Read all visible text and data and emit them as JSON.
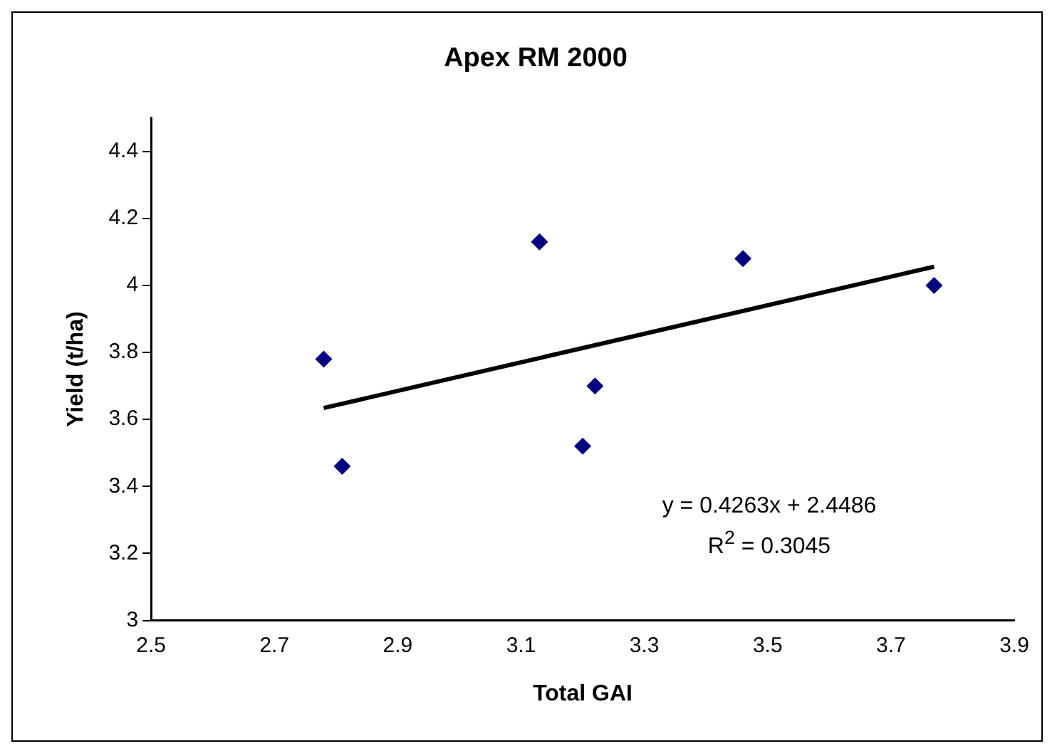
{
  "chart_data": {
    "type": "scatter",
    "title": "Apex RM 2000",
    "xlabel": "Total GAI",
    "ylabel": "Yield (t/ha)",
    "series": [
      {
        "type": "scatter",
        "color": "#000080",
        "marker": "diamond",
        "x": [
          2.78,
          2.81,
          3.13,
          3.2,
          3.22,
          3.46,
          3.77
        ],
        "values": [
          3.78,
          3.46,
          4.13,
          3.52,
          3.7,
          4.08,
          4.0
        ]
      },
      {
        "type": "line",
        "color": "#000000",
        "marker": "none",
        "x": [
          2.78,
          3.77
        ],
        "values": [
          3.634,
          4.056
        ]
      }
    ],
    "xlim": [
      2.5,
      3.9
    ],
    "xticks": [
      2.5,
      2.7,
      2.9,
      3.1,
      3.3,
      3.5,
      3.7,
      3.9
    ],
    "ylim": [
      3,
      4.5
    ],
    "yticks": [
      3,
      3.2,
      3.4,
      3.6,
      3.8,
      4,
      4.2,
      4.4
    ],
    "annotations": [
      "y = 0.4263x + 2.4486",
      "R$^{2}$ = 0.3045"
    ],
    "grid": false,
    "legend": false
  }
}
